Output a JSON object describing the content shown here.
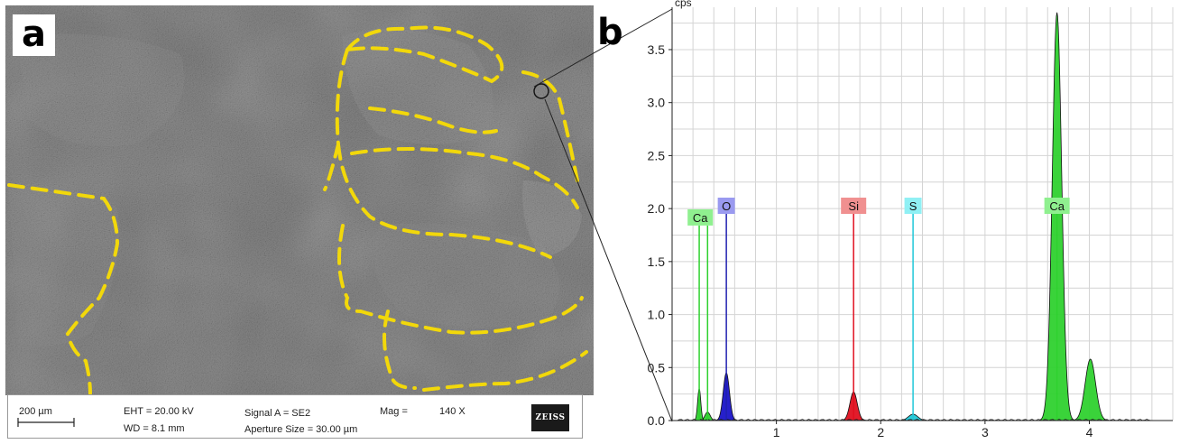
{
  "panel_a": {
    "label": "a",
    "scale_bar": "200 µm",
    "eht": "EHT = 20.00 kV",
    "wd": "WD = 8.1 mm",
    "signal": "Signal A = SE2",
    "aperture": "Aperture Size = 30.00 µm",
    "mag_label": "Mag =",
    "mag_value": "140 X",
    "logo": "ZEISS",
    "outline_color": "#f2d80a"
  },
  "panel_b": {
    "label": "b"
  },
  "chart_data": {
    "type": "area",
    "title": "",
    "ylabel": "cps",
    "xlabel": "",
    "xlim": [
      0.0,
      4.8
    ],
    "ylim": [
      0.0,
      3.9
    ],
    "x_ticks": [
      "1",
      "2",
      "3",
      "4"
    ],
    "x_tick_values": [
      1,
      2,
      3,
      4
    ],
    "y_ticks": [
      "0.0",
      "0.5",
      "1.0",
      "1.5",
      "2.0",
      "2.5",
      "3.0",
      "3.5"
    ],
    "y_tick_values": [
      0.0,
      0.5,
      1.0,
      1.5,
      2.0,
      2.5,
      3.0,
      3.5
    ],
    "grid": true,
    "peaks": [
      {
        "element": "Ca",
        "energy": 0.34,
        "height": 0.08,
        "width": 0.025,
        "color": "#2fd12f"
      },
      {
        "element": "Ca",
        "energy": 0.26,
        "height": 0.3,
        "width": 0.015,
        "color": "#2fd12f"
      },
      {
        "element": "O",
        "energy": 0.52,
        "height": 0.45,
        "width": 0.03,
        "color": "#1a14c8"
      },
      {
        "element": "Si",
        "energy": 1.74,
        "height": 0.27,
        "width": 0.035,
        "color": "#e01020"
      },
      {
        "element": "S",
        "energy": 2.31,
        "height": 0.06,
        "width": 0.045,
        "color": "#20c8d8"
      },
      {
        "element": "Ca",
        "energy": 3.69,
        "height": 3.85,
        "width": 0.045,
        "color": "#2fd12f"
      },
      {
        "element": "Ca",
        "energy": 4.01,
        "height": 0.58,
        "width": 0.05,
        "color": "#2fd12f"
      }
    ],
    "markers": [
      {
        "label": "Ca",
        "energy": 0.27,
        "line_height": 1.84,
        "line_energies": [
          0.26,
          0.34
        ],
        "color": "#2fd12f",
        "box_color": "#8ff08f"
      },
      {
        "label": "O",
        "energy": 0.52,
        "line_height": 1.95,
        "line_energies": [
          0.52
        ],
        "color": "#2020b0",
        "box_color": "#9a9af0"
      },
      {
        "label": "Si",
        "energy": 1.74,
        "line_height": 1.95,
        "line_energies": [
          1.74
        ],
        "color": "#e01020",
        "box_color": "#f09090"
      },
      {
        "label": "S",
        "energy": 2.31,
        "line_height": 1.95,
        "line_energies": [
          2.31
        ],
        "color": "#20c8d8",
        "box_color": "#90f0f4"
      },
      {
        "label": "Ca",
        "energy": 3.69,
        "line_height": 1.95,
        "line_energies": [
          3.69
        ],
        "color": "#2fd12f",
        "box_color": "#8ff08f"
      }
    ]
  }
}
